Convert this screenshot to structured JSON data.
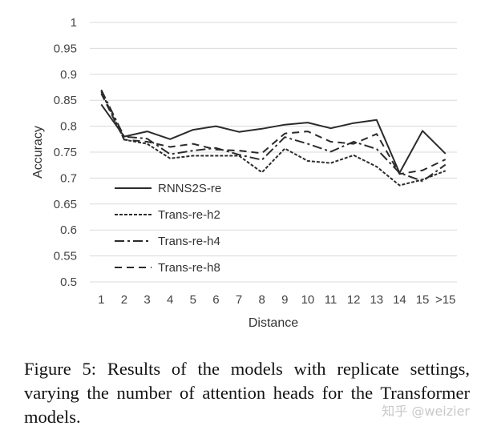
{
  "chart_data": {
    "type": "line",
    "title": "",
    "xlabel": "Distance",
    "ylabel": "Accuracy",
    "categories": [
      "1",
      "2",
      "3",
      "4",
      "5",
      "6",
      "7",
      "8",
      "9",
      "10",
      "11",
      "12",
      "13",
      "14",
      "15",
      ">15"
    ],
    "ylim": [
      0.5,
      1
    ],
    "yticks": [
      "0.5",
      "0.55",
      "0.6",
      "0.65",
      "0.7",
      "0.75",
      "0.8",
      "0.85",
      "0.9",
      "0.95",
      "1"
    ],
    "grid": "horizontal",
    "legend_position": "lower-left",
    "series": [
      {
        "name": "RNNS2S-re",
        "style": "solid",
        "values": [
          0.842,
          0.78,
          0.79,
          0.775,
          0.793,
          0.8,
          0.789,
          0.795,
          0.803,
          0.807,
          0.796,
          0.806,
          0.812,
          0.71,
          0.791,
          0.747
        ]
      },
      {
        "name": "Trans-re-h2",
        "style": "dotted",
        "values": [
          0.867,
          0.774,
          0.766,
          0.738,
          0.743,
          0.743,
          0.743,
          0.711,
          0.757,
          0.733,
          0.729,
          0.744,
          0.722,
          0.686,
          0.697,
          0.714
        ]
      },
      {
        "name": "Trans-re-h4",
        "style": "dash-dot",
        "values": [
          0.87,
          0.78,
          0.776,
          0.746,
          0.753,
          0.758,
          0.745,
          0.735,
          0.779,
          0.766,
          0.751,
          0.77,
          0.756,
          0.71,
          0.694,
          0.726
        ]
      },
      {
        "name": "Trans-re-h8",
        "style": "dashed",
        "values": [
          0.863,
          0.774,
          0.77,
          0.76,
          0.766,
          0.755,
          0.753,
          0.748,
          0.786,
          0.79,
          0.77,
          0.766,
          0.785,
          0.708,
          0.715,
          0.736
        ]
      }
    ]
  },
  "caption": "Figure 5: Results of the models with replicate settings, varying the number of attention heads for the Transformer models.",
  "watermark": "知乎 @weizier",
  "colors": {
    "line": "#2b2b2b",
    "grid": "#d9d9d9",
    "text": "#444444"
  }
}
